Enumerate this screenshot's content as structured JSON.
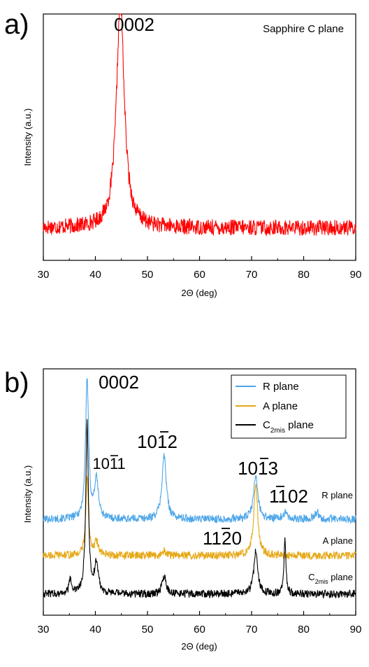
{
  "chart_data": [
    {
      "type": "line",
      "panel_label": "a)",
      "annotation": "Sapphire C plane",
      "xlabel": "2Θ (deg)",
      "ylabel": "Intensity (a.u.)",
      "xlim": [
        30,
        90
      ],
      "x_ticks": [
        "30",
        "40",
        "50",
        "60",
        "70",
        "80",
        "90"
      ],
      "y_ticks_shown": false,
      "grid": false,
      "color": "#ff0000",
      "baseline": 0.1,
      "peaks": [
        {
          "label": "0002",
          "x": 44.8,
          "height": 1.0,
          "width": 0.9
        }
      ]
    },
    {
      "type": "line",
      "panel_label": "b)",
      "xlabel": "2Θ (deg)",
      "ylabel": "Intensity (a.u.)",
      "xlim": [
        30,
        90
      ],
      "x_ticks": [
        "30",
        "40",
        "50",
        "60",
        "70",
        "80",
        "90"
      ],
      "y_ticks_shown": false,
      "grid": false,
      "legend_position": "top-right",
      "peak_labels": [
        {
          "text": "0002",
          "x": 38.4
        },
        {
          "text": "1011",
          "x": 40.2
        },
        {
          "text": "1012",
          "x": 53.2
        },
        {
          "text": "1013",
          "x": 70.8
        },
        {
          "text": "1102",
          "x": 76.4
        },
        {
          "text": "1120",
          "x": 62.5
        }
      ],
      "series": [
        {
          "name": "R plane",
          "trace_label": "R plane",
          "color": "#4da6e8",
          "baseline": 0.38,
          "peaks": [
            {
              "x": 38.4,
              "height": 0.62,
              "width": 0.35
            },
            {
              "x": 40.2,
              "height": 0.17,
              "width": 0.45
            },
            {
              "x": 53.2,
              "height": 0.28,
              "width": 0.5
            },
            {
              "x": 70.8,
              "height": 0.19,
              "width": 0.5
            },
            {
              "x": 76.4,
              "height": 0.03,
              "width": 0.4
            },
            {
              "x": 82.5,
              "height": 0.03,
              "width": 0.5
            }
          ]
        },
        {
          "name": "A plane",
          "trace_label": "A plane",
          "color": "#e6a817",
          "baseline": 0.22,
          "peaks": [
            {
              "x": 38.4,
              "height": 0.35,
              "width": 0.3
            },
            {
              "x": 40.2,
              "height": 0.06,
              "width": 0.4
            },
            {
              "x": 53.2,
              "height": 0.02,
              "width": 0.4
            },
            {
              "x": 70.8,
              "height": 0.32,
              "width": 0.45
            }
          ]
        },
        {
          "name": "C2mis plane",
          "legend_main": "C",
          "legend_sub": "2mis",
          "legend_rest": " plane",
          "trace_label_main": "C",
          "trace_label_sub": "2mis",
          "trace_label_rest": " plane",
          "color": "#000000",
          "baseline": 0.05,
          "peaks": [
            {
              "x": 35.2,
              "height": 0.06,
              "width": 0.3
            },
            {
              "x": 38.4,
              "height": 0.75,
              "width": 0.3
            },
            {
              "x": 40.2,
              "height": 0.13,
              "width": 0.45
            },
            {
              "x": 53.2,
              "height": 0.08,
              "width": 0.45
            },
            {
              "x": 70.8,
              "height": 0.19,
              "width": 0.45
            },
            {
              "x": 76.4,
              "height": 0.24,
              "width": 0.22
            }
          ]
        }
      ]
    }
  ]
}
